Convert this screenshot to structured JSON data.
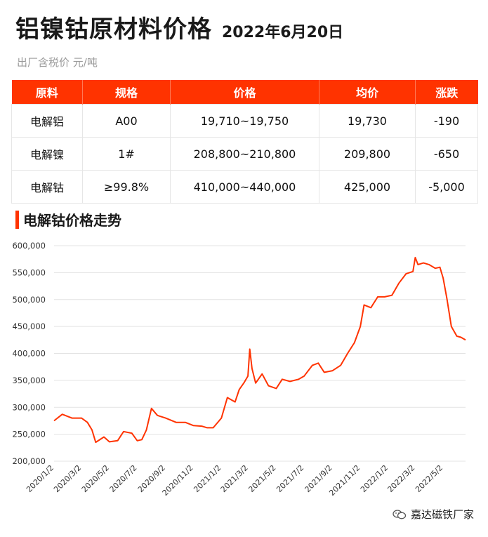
{
  "header": {
    "title": "铝镍钴原材料价格",
    "date": "2022年6月20日"
  },
  "subtitle": "出厂含税价 元/吨",
  "table": {
    "headers": [
      "原料",
      "规格",
      "价格",
      "均价",
      "涨跌"
    ],
    "rows": [
      {
        "material": "电解铝",
        "spec": "A00",
        "price": "19,710~19,750",
        "avg": "19,730",
        "change": "-190"
      },
      {
        "material": "电解镍",
        "spec": "1#",
        "price": "208,800~210,800",
        "avg": "209,800",
        "change": "-650"
      },
      {
        "material": "电解钴",
        "spec": "≥99.8%",
        "price": "410,000~440,000",
        "avg": "425,000",
        "change": "-5,000"
      }
    ]
  },
  "section_title": "电解钴价格走势",
  "watermark": {
    "text": "嘉达磁铁厂家",
    "icon": "wechat-icon"
  },
  "colors": {
    "accent": "#ff3300",
    "change_down": "#33cc00",
    "line": "#ff3300"
  },
  "chart_data": {
    "type": "line",
    "title": "",
    "xlabel": "",
    "ylabel": "",
    "ylim": [
      200000,
      600000
    ],
    "yticks": [
      "200,000",
      "250,000",
      "300,000",
      "350,000",
      "400,000",
      "450,000",
      "500,000",
      "550,000",
      "600,000"
    ],
    "xticks": [
      "2020/1/2",
      "2020/3/2",
      "2020/5/2",
      "2020/7/2",
      "2020/9/2",
      "2020/11/2",
      "2021/1/2",
      "2021/3/2",
      "2021/5/2",
      "2021/7/2",
      "2021/9/2",
      "2021/11/2",
      "2022/1/2",
      "2022/3/2",
      "2022/5/2"
    ],
    "grid": true,
    "series": [
      {
        "x": [
          "2020-01-02",
          "2020-01-20",
          "2020-02-10",
          "2020-03-02",
          "2020-03-15",
          "2020-03-25",
          "2020-04-02",
          "2020-04-20",
          "2020-05-02",
          "2020-05-20",
          "2020-06-02",
          "2020-06-20",
          "2020-07-02",
          "2020-07-12",
          "2020-07-22",
          "2020-08-02",
          "2020-08-15",
          "2020-09-02",
          "2020-09-25",
          "2020-10-15",
          "2020-11-02",
          "2020-11-20",
          "2020-12-02",
          "2020-12-15",
          "2021-01-02",
          "2021-01-15",
          "2021-02-01",
          "2021-02-10",
          "2021-02-20",
          "2021-03-01",
          "2021-03-05",
          "2021-03-10",
          "2021-03-18",
          "2021-04-01",
          "2021-04-15",
          "2021-05-02",
          "2021-05-15",
          "2021-06-01",
          "2021-06-20",
          "2021-07-02",
          "2021-07-20",
          "2021-08-02",
          "2021-08-15",
          "2021-09-02",
          "2021-09-20",
          "2021-10-05",
          "2021-10-20",
          "2021-11-02",
          "2021-11-10",
          "2021-11-25",
          "2021-12-10",
          "2021-12-25",
          "2022-01-10",
          "2022-01-25",
          "2022-02-10",
          "2022-02-25",
          "2022-03-02",
          "2022-03-08",
          "2022-03-20",
          "2022-04-01",
          "2022-04-15",
          "2022-04-25",
          "2022-05-02",
          "2022-05-10",
          "2022-05-20",
          "2022-06-01",
          "2022-06-10",
          "2022-06-20"
        ],
        "values": [
          275000,
          287000,
          280000,
          280000,
          272000,
          258000,
          235000,
          245000,
          236000,
          238000,
          255000,
          252000,
          238000,
          240000,
          258000,
          298000,
          285000,
          280000,
          272000,
          272000,
          266000,
          265000,
          262000,
          262000,
          280000,
          318000,
          310000,
          333000,
          345000,
          358000,
          408000,
          372000,
          345000,
          362000,
          340000,
          335000,
          352000,
          348000,
          352000,
          358000,
          378000,
          382000,
          365000,
          368000,
          378000,
          400000,
          420000,
          450000,
          490000,
          485000,
          505000,
          505000,
          508000,
          530000,
          548000,
          552000,
          578000,
          565000,
          568000,
          565000,
          558000,
          560000,
          540000,
          503000,
          450000,
          432000,
          430000,
          425000
        ]
      }
    ]
  }
}
